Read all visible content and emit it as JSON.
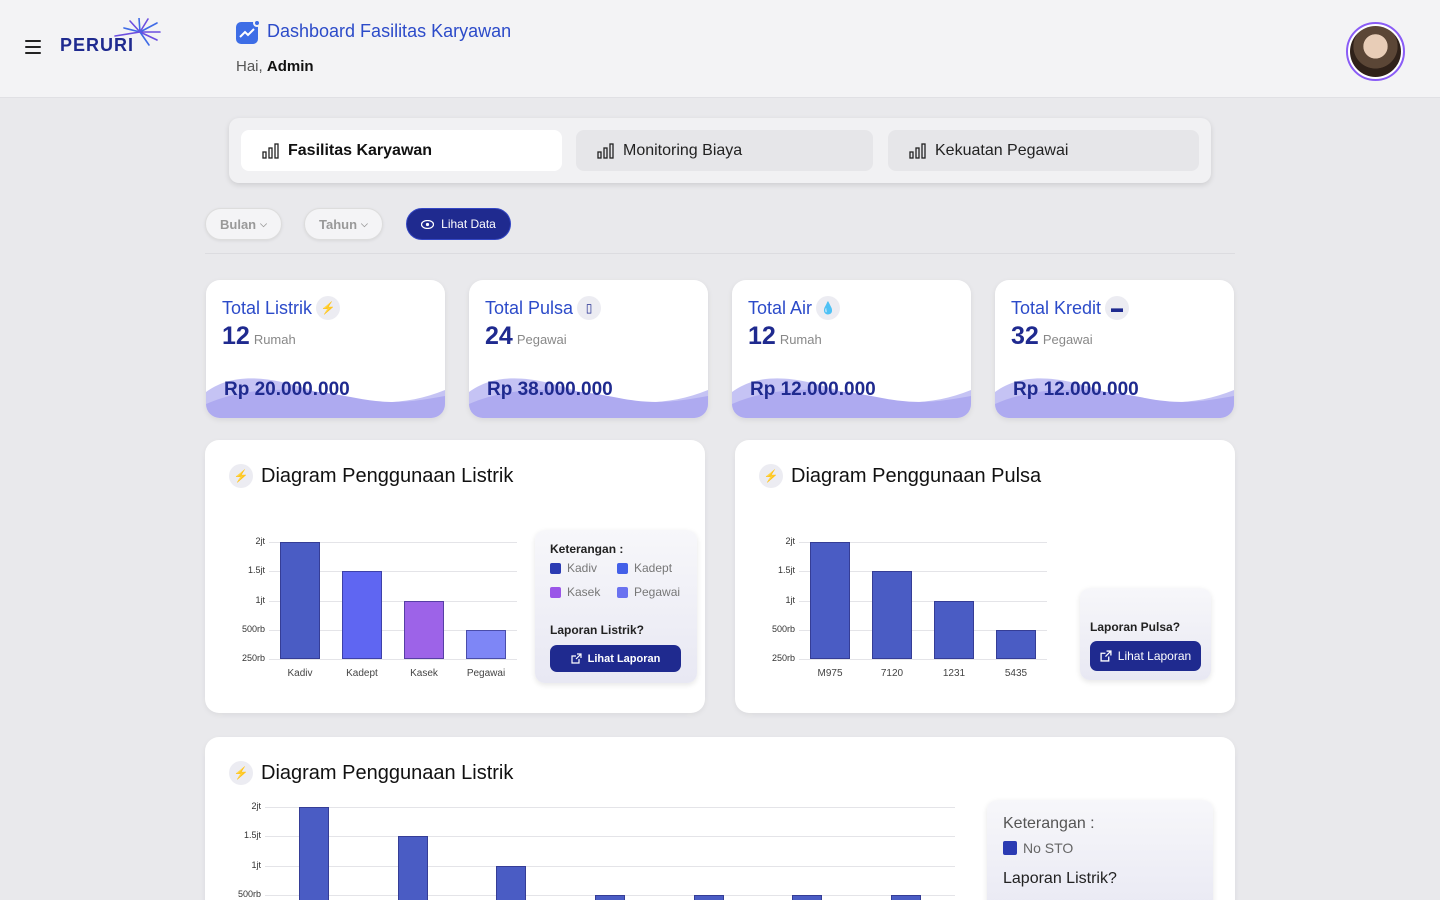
{
  "header": {
    "logo_text": "PERURI",
    "title": "Dashboard Fasilitas Karyawan",
    "greeting_prefix": "Hai,",
    "user_name": "Admin"
  },
  "tabs": [
    {
      "label": "Fasilitas Karyawan",
      "active": true
    },
    {
      "label": "Monitoring Biaya",
      "active": false
    },
    {
      "label": "Kekuatan Pegawai",
      "active": false
    }
  ],
  "filters": {
    "bulan": "Bulan",
    "tahun": "Tahun",
    "lihat_data": "Lihat Data"
  },
  "cards": [
    {
      "title": "Total Listrik",
      "icon": "bolt-icon",
      "count": "12",
      "unit": "Rumah",
      "amount": "Rp 20.000.000"
    },
    {
      "title": "Total Pulsa",
      "icon": "phone-icon",
      "count": "24",
      "unit": "Pegawai",
      "amount": "Rp 38.000.000"
    },
    {
      "title": "Total Air",
      "icon": "water-drop-icon",
      "count": "12",
      "unit": "Rumah",
      "amount": "Rp 12.000.000"
    },
    {
      "title": "Total Kredit",
      "icon": "credit-card-icon",
      "count": "32",
      "unit": "Pegawai",
      "amount": "Rp 12.000.000"
    }
  ],
  "panels": {
    "listrik": {
      "title": "Diagram Penggunaan Listrik",
      "legend_title": "Keterangan :",
      "legend": [
        {
          "name": "Kadiv",
          "color": "#2b3bb3"
        },
        {
          "name": "Kadept",
          "color": "#4360e8"
        },
        {
          "name": "Kasek",
          "color": "#9a55e8"
        },
        {
          "name": "Pegawai",
          "color": "#6a72f0"
        }
      ],
      "question": "Laporan Listrik?",
      "button": "Lihat Laporan"
    },
    "pulsa": {
      "title": "Diagram Penggunaan Pulsa",
      "question": "Laporan Pulsa?",
      "button": "Lihat Laporan"
    },
    "listrik2": {
      "title": "Diagram Penggunaan Listrik",
      "legend_title": "Keterangan :",
      "legend": [
        {
          "name": "No STO",
          "color": "#2b3bb3"
        }
      ],
      "question": "Laporan Listrik?"
    }
  },
  "chart_data": [
    {
      "type": "bar",
      "categories": [
        "Kadiv",
        "Kadept",
        "Kasek",
        "Pegawai"
      ],
      "values": [
        2000000,
        1500000,
        1000000,
        500000
      ],
      "colors": [
        "#4a5cc4",
        "#5f66f2",
        "#9d63e8",
        "#7e86f6"
      ],
      "yticks": [
        "2jt",
        "1.5jt",
        "1jt",
        "500rb",
        "250rb"
      ],
      "ylim": [
        0,
        2000000
      ]
    },
    {
      "type": "bar",
      "categories": [
        "M975",
        "7120",
        "1231",
        "5435"
      ],
      "values": [
        2000000,
        1500000,
        1000000,
        500000
      ],
      "colors": [
        "#4a5cc4",
        "#4a5cc4",
        "#4a5cc4",
        "#4a5cc4"
      ],
      "yticks": [
        "2jt",
        "1.5jt",
        "1jt",
        "500rb",
        "250rb"
      ],
      "ylim": [
        0,
        2000000
      ]
    },
    {
      "type": "bar",
      "categories": [
        "",
        "",
        "",
        "",
        "",
        "",
        ""
      ],
      "values": [
        2000000,
        1500000,
        1000000,
        500000,
        500000,
        500000,
        500000
      ],
      "colors": [
        "#4a5cc4"
      ],
      "yticks": [
        "2jt",
        "1.5jt",
        "1jt",
        "500rb"
      ],
      "ylim": [
        0,
        2000000
      ]
    }
  ]
}
